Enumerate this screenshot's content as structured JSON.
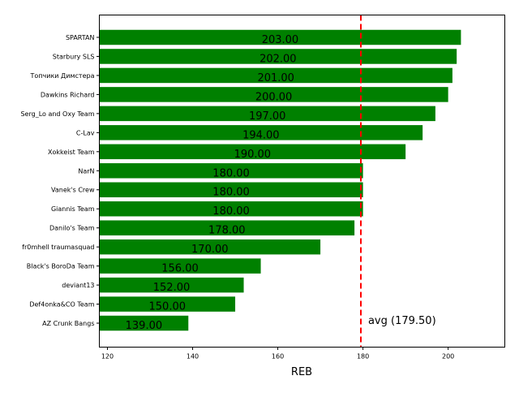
{
  "chart_data": {
    "type": "bar",
    "orientation": "horizontal",
    "categories": [
      "SPARTAN",
      "Starbury SLS",
      "Топчики Димстера",
      "Dawkins Richard",
      "Serg_Lo and Oxy Team",
      "C-Lav",
      "Xokkeist Team",
      "NarN",
      "Vanek's Crew",
      "Giannis Team",
      "Danilo's Team",
      "fr0mhell traumasquad",
      "Black's BoroDa Team",
      "deviant13",
      "Def4onka&CO Team",
      "AZ Crunk Bangs"
    ],
    "values": [
      203,
      202,
      201,
      200,
      197,
      194,
      190,
      180,
      180,
      180,
      178,
      170,
      156,
      152,
      150,
      139
    ],
    "data_labels": [
      "203.00",
      "202.00",
      "201.00",
      "200.00",
      "197.00",
      "194.00",
      "190.00",
      "180.00",
      "180.00",
      "180.00",
      "178.00",
      "170.00",
      "156.00",
      "152.00",
      "150.00",
      "139.00"
    ],
    "xlabel": "REB",
    "ylabel": "",
    "title": "",
    "xlim": [
      118.1,
      213.3
    ],
    "xticks": [
      120,
      140,
      160,
      180,
      200
    ],
    "grid": false,
    "bar_color": "#008000",
    "reference_line": {
      "value": 179.5,
      "label": "avg (179.50)",
      "color": "#ff0000",
      "style": "dashed"
    }
  }
}
